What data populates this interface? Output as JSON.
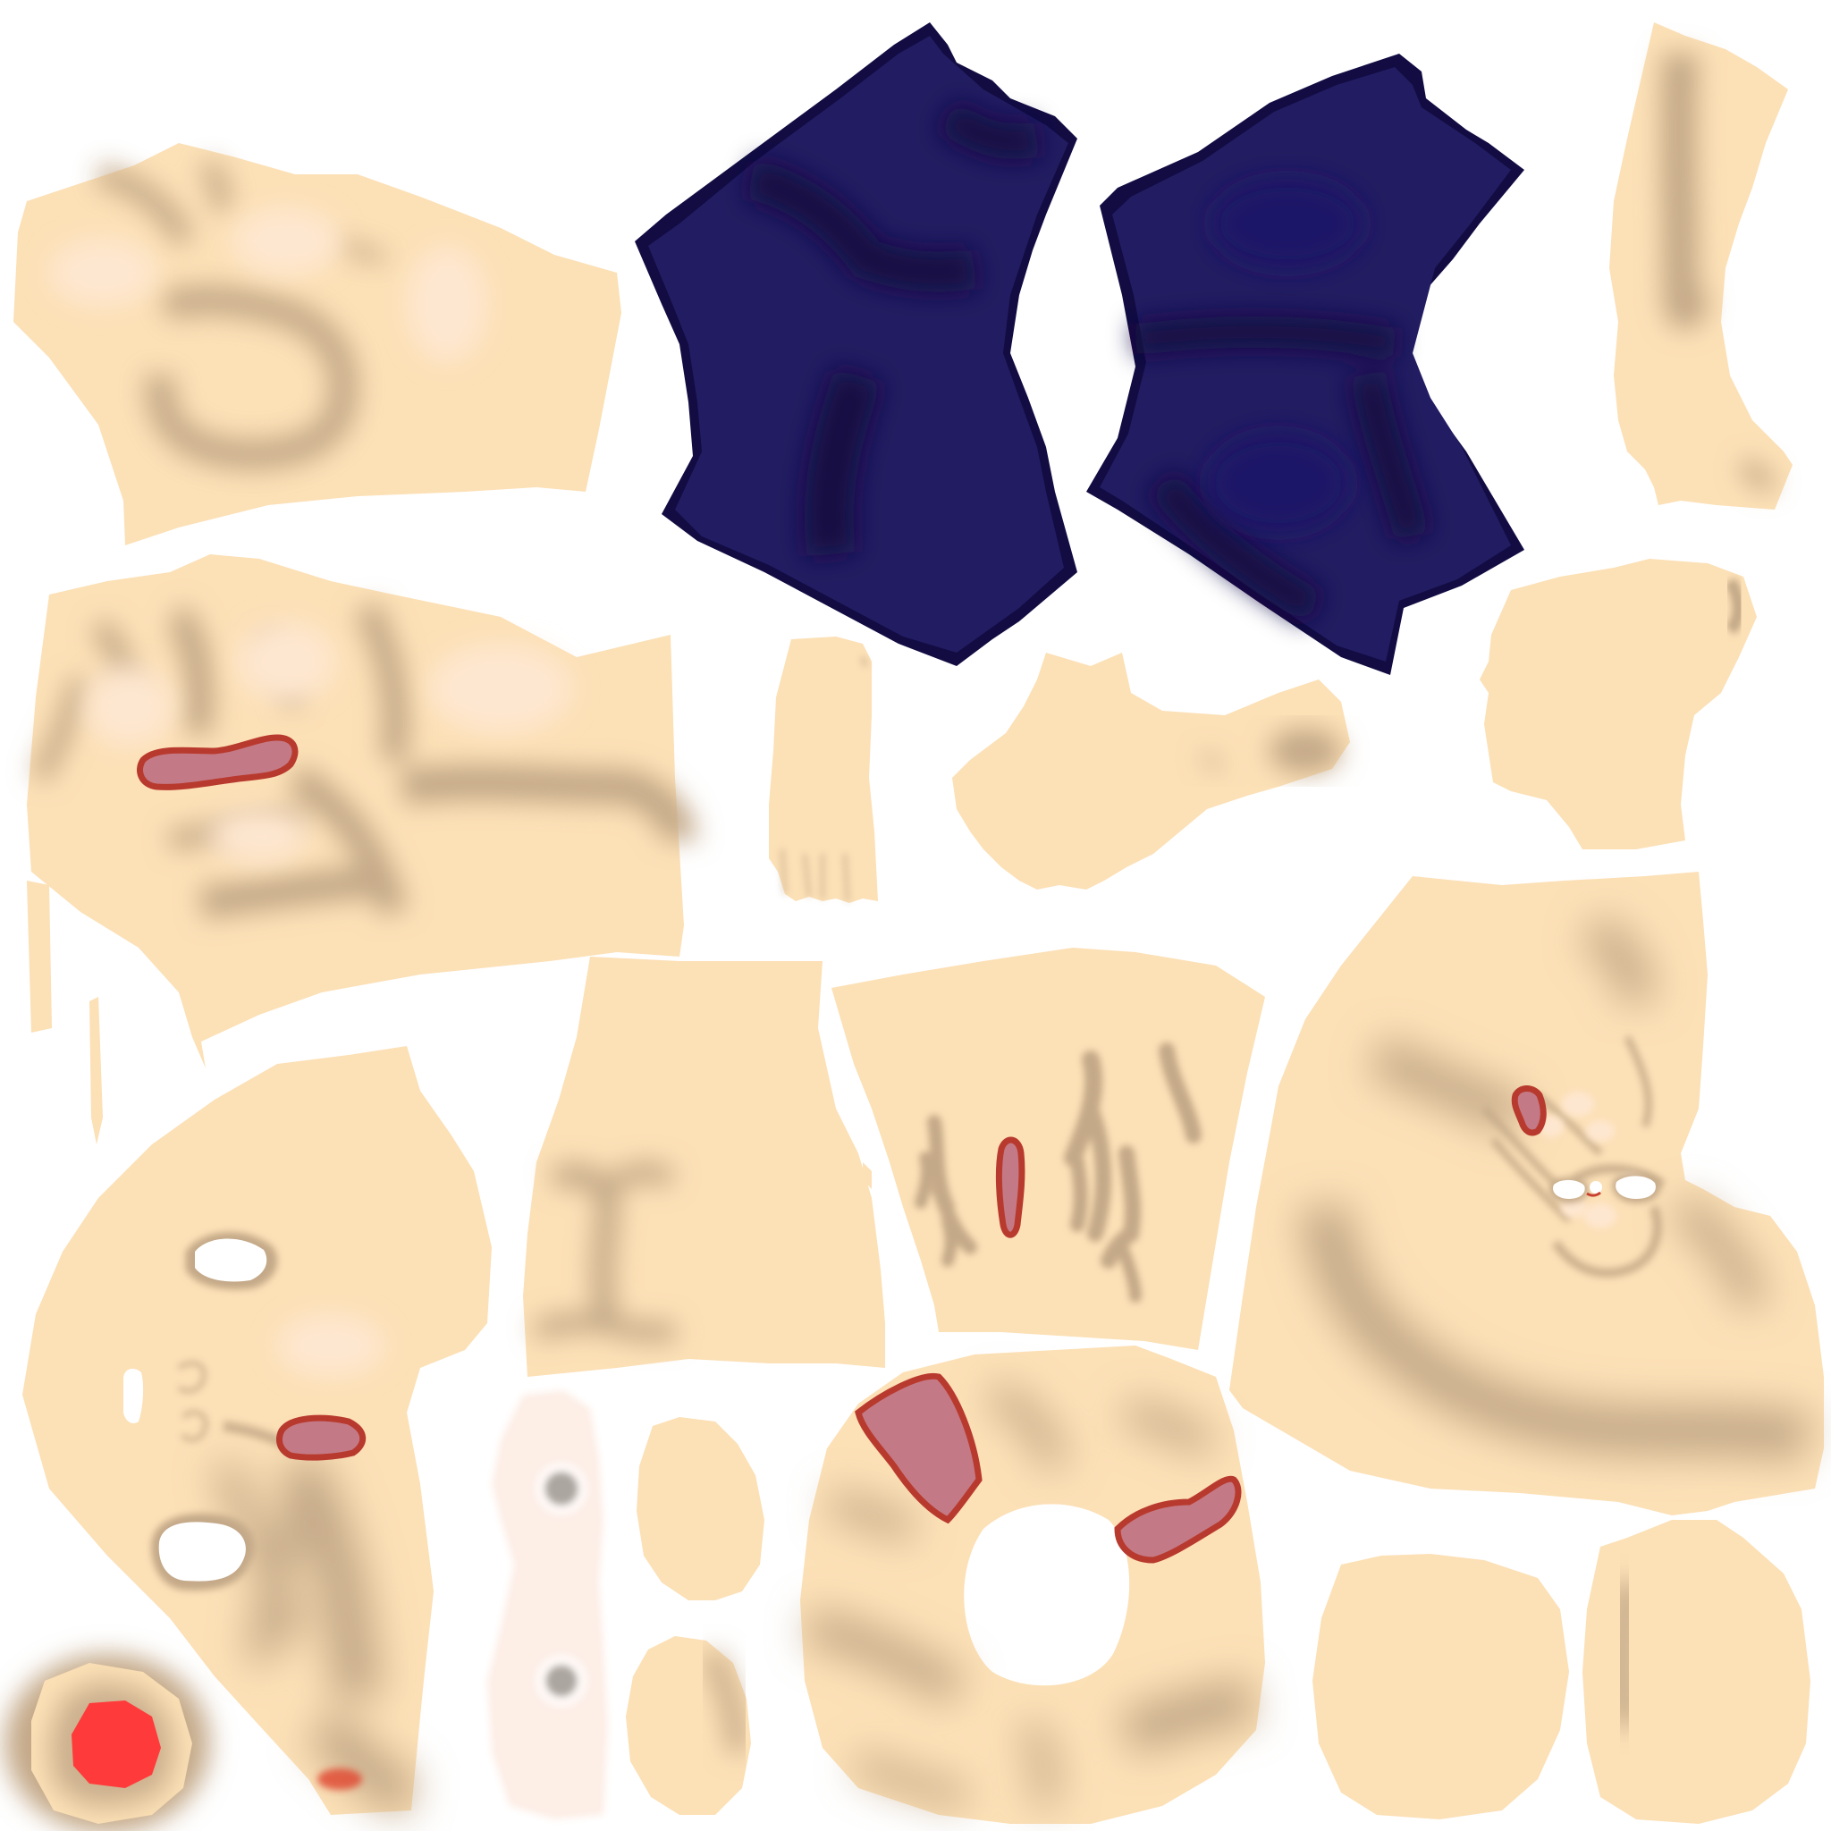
{
  "atlas": {
    "background": "#ffffff",
    "colors": {
      "skin": "#fce0b6",
      "skin_shadow": "#c4a988",
      "skin_highlight": "#fee7d0",
      "fabric": "#221c62",
      "fabric_shadow": "#120c42",
      "fabric_highlight": "#1c1468",
      "wound_fill": "#c47a86",
      "wound_rim": "#b83a2e",
      "blood_spot": "#ff3a3a",
      "eye_white": "#fdeee6",
      "iris_grey": "#aca6a0"
    }
  }
}
